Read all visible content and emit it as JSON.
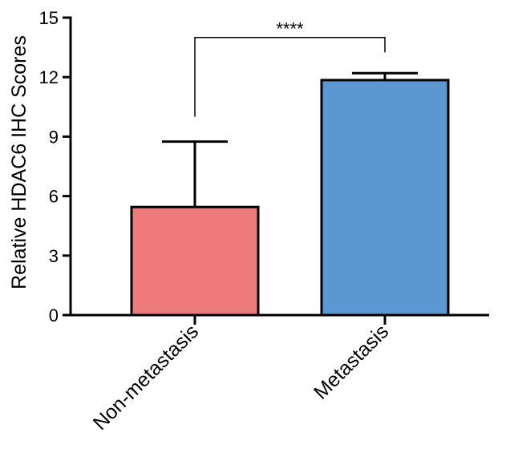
{
  "chart_data": {
    "type": "bar",
    "ylabel": "Relative HDAC6 IHC Scores",
    "ylim": [
      0,
      15
    ],
    "yticks": [
      0,
      3,
      6,
      9,
      12,
      15
    ],
    "categories": [
      "Non-metastasis",
      "Metastasis"
    ],
    "values": [
      5.45,
      11.85
    ],
    "error_plus": [
      3.3,
      0.35
    ],
    "colors": [
      "#ee7b7b",
      "#5b97d1"
    ],
    "significance": {
      "between": [
        0,
        1
      ],
      "label": "****",
      "level": 14.0
    }
  }
}
